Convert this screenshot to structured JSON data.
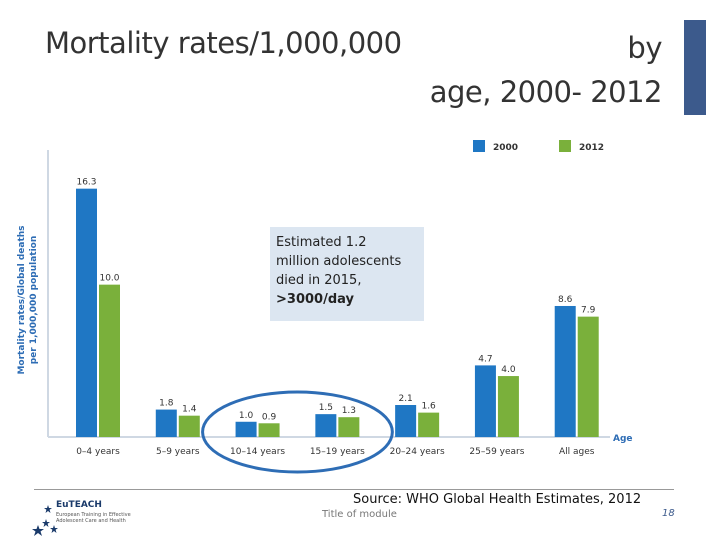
{
  "title": {
    "left": "Mortality rates/1,000,000",
    "right_line1": "by",
    "right_line2": "age, 2000- 2012"
  },
  "callout": {
    "line1": "Estimated 1.2",
    "line2": "million adolescents",
    "line3": "died in 2015,",
    "line4": ">3000/day"
  },
  "source": "Source: WHO Global Health Estimates, 2012",
  "footer": {
    "module": "Title of module",
    "page": "18",
    "logo_title": "EuTEACH",
    "logo_subtitle": "European Training in Effective Adolescent Care and Health"
  },
  "colors": {
    "series_2000": "#1f77c4",
    "series_2012": "#7ab03b",
    "accent": "#3c5a8c",
    "highlight": "#2e6db5"
  },
  "chart_data": {
    "type": "bar",
    "title": "Mortality rates/1,000,000 by age, 2000- 2012",
    "xlabel": "Age",
    "ylabel_line1": "Mortality rates/Global deaths",
    "ylabel_line2": "per 1,000,000 population",
    "ylim": [
      0,
      17
    ],
    "grid": false,
    "legend_position": "top-right",
    "categories": [
      "0–4 years",
      "5–9 years",
      "10–14 years",
      "15–19 years",
      "20–24 years",
      "25–59 years",
      "All ages"
    ],
    "series": [
      {
        "name": "2000",
        "values": [
          16.3,
          1.8,
          1.0,
          1.5,
          2.1,
          4.7,
          8.6
        ],
        "labels": [
          "16.3",
          "1.8",
          "1.0",
          "1.5",
          "2.1",
          "4.7",
          "8.6"
        ]
      },
      {
        "name": "2012",
        "values": [
          10.0,
          1.4,
          0.9,
          1.3,
          1.6,
          4.0,
          7.9
        ],
        "labels": [
          "10.0",
          "1.4",
          "0.9",
          "1.3",
          "1.6",
          "4.0",
          "7.9"
        ]
      }
    ],
    "highlighted_categories": [
      "10–14 years",
      "15–19 years"
    ]
  }
}
